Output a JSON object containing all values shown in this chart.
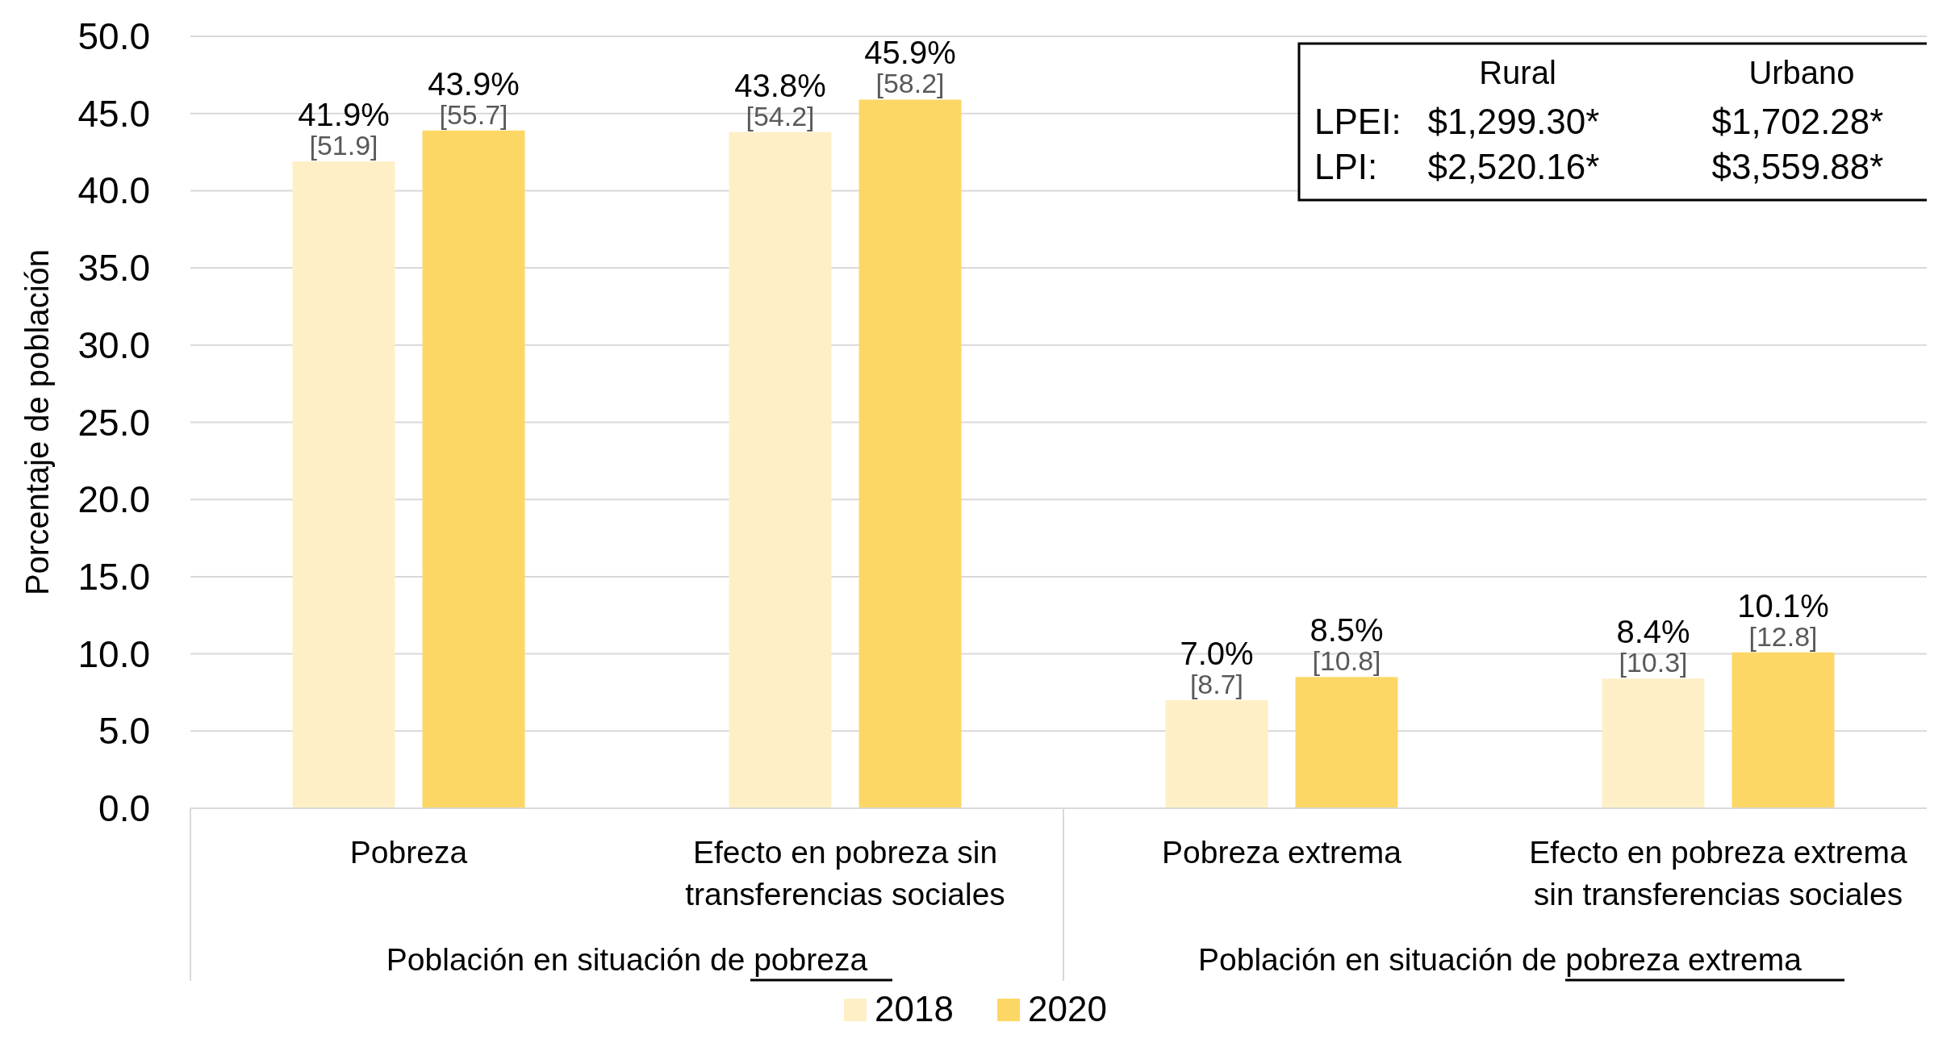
{
  "chart_data": {
    "type": "bar",
    "ylabel": "Porcentaje de población",
    "categories": [
      "Pobreza",
      "Efecto en pobreza sin transferencias sociales",
      "Pobreza extrema",
      "Efecto en pobreza extrema sin transferencias sociales"
    ],
    "series": [
      {
        "name": "2018",
        "color": "#feefc6",
        "values": [
          41.9,
          43.8,
          7.0,
          8.4
        ],
        "value_labels": [
          "41.9% [51.9]",
          "43.8% [54.2]",
          "7.0% [8.7]",
          "8.4% [10.3]"
        ]
      },
      {
        "name": "2020",
        "color": "#fdd766",
        "values": [
          43.9,
          45.9,
          8.5,
          10.1
        ],
        "value_labels": [
          "43.9% [55.7]",
          "45.9% [58.2]",
          "8.5% [10.8]",
          "10.1% [12.8]"
        ]
      }
    ],
    "ylim": [
      0,
      50
    ],
    "yticks": [
      {
        "value": 0,
        "label": "0.0"
      },
      {
        "value": 5,
        "label": "5.0"
      },
      {
        "value": 10,
        "label": "10.0"
      },
      {
        "value": 15,
        "label": "15.0"
      },
      {
        "value": 20,
        "label": "20.0"
      },
      {
        "value": 25,
        "label": "25.0"
      },
      {
        "value": 30,
        "label": "30.0"
      },
      {
        "value": 35,
        "label": "35.0"
      },
      {
        "value": 40,
        "label": "40.0"
      },
      {
        "value": 45,
        "label": "45.0"
      },
      {
        "value": 50,
        "label": "50.0"
      }
    ],
    "grid": "y",
    "legend": "bottom",
    "annotations": [
      "Población en situación de pobreza",
      "Población en situación de pobreza extrema",
      "Rural",
      "Urbano",
      "LPEI:",
      "$1,299.30*",
      "$1,702.28*",
      "LPI:",
      "$2,520.16*",
      "$3,559.88*"
    ]
  }
}
